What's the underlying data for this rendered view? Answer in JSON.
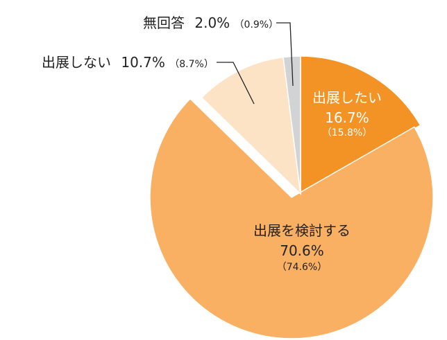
{
  "chart_data": {
    "type": "pie",
    "title": "",
    "slices": [
      {
        "name": "出展したい",
        "value": 16.7,
        "value_label": "16.7%",
        "previous_label": "（15.8%）",
        "color": "#f39325",
        "label_color": "#ffffff",
        "exploded": false
      },
      {
        "name": "出展を検討する",
        "value": 70.6,
        "value_label": "70.6%",
        "previous_label": "（74.6%）",
        "color": "#fab063",
        "label_color": "#222222",
        "exploded": true
      },
      {
        "name": "出展しない",
        "value": 10.7,
        "value_label": "10.7%",
        "previous_label": "（8.7%）",
        "color": "#fde3c6",
        "label_color": "#222222",
        "exploded": false
      },
      {
        "name": "無回答",
        "value": 2.0,
        "value_label": "2.0%",
        "previous_label": "（0.9%）",
        "color": "#d2d3d5",
        "label_color": "#222222",
        "exploded": false
      }
    ],
    "start_angle_deg": 0,
    "direction": "clockwise",
    "legend": "none"
  }
}
